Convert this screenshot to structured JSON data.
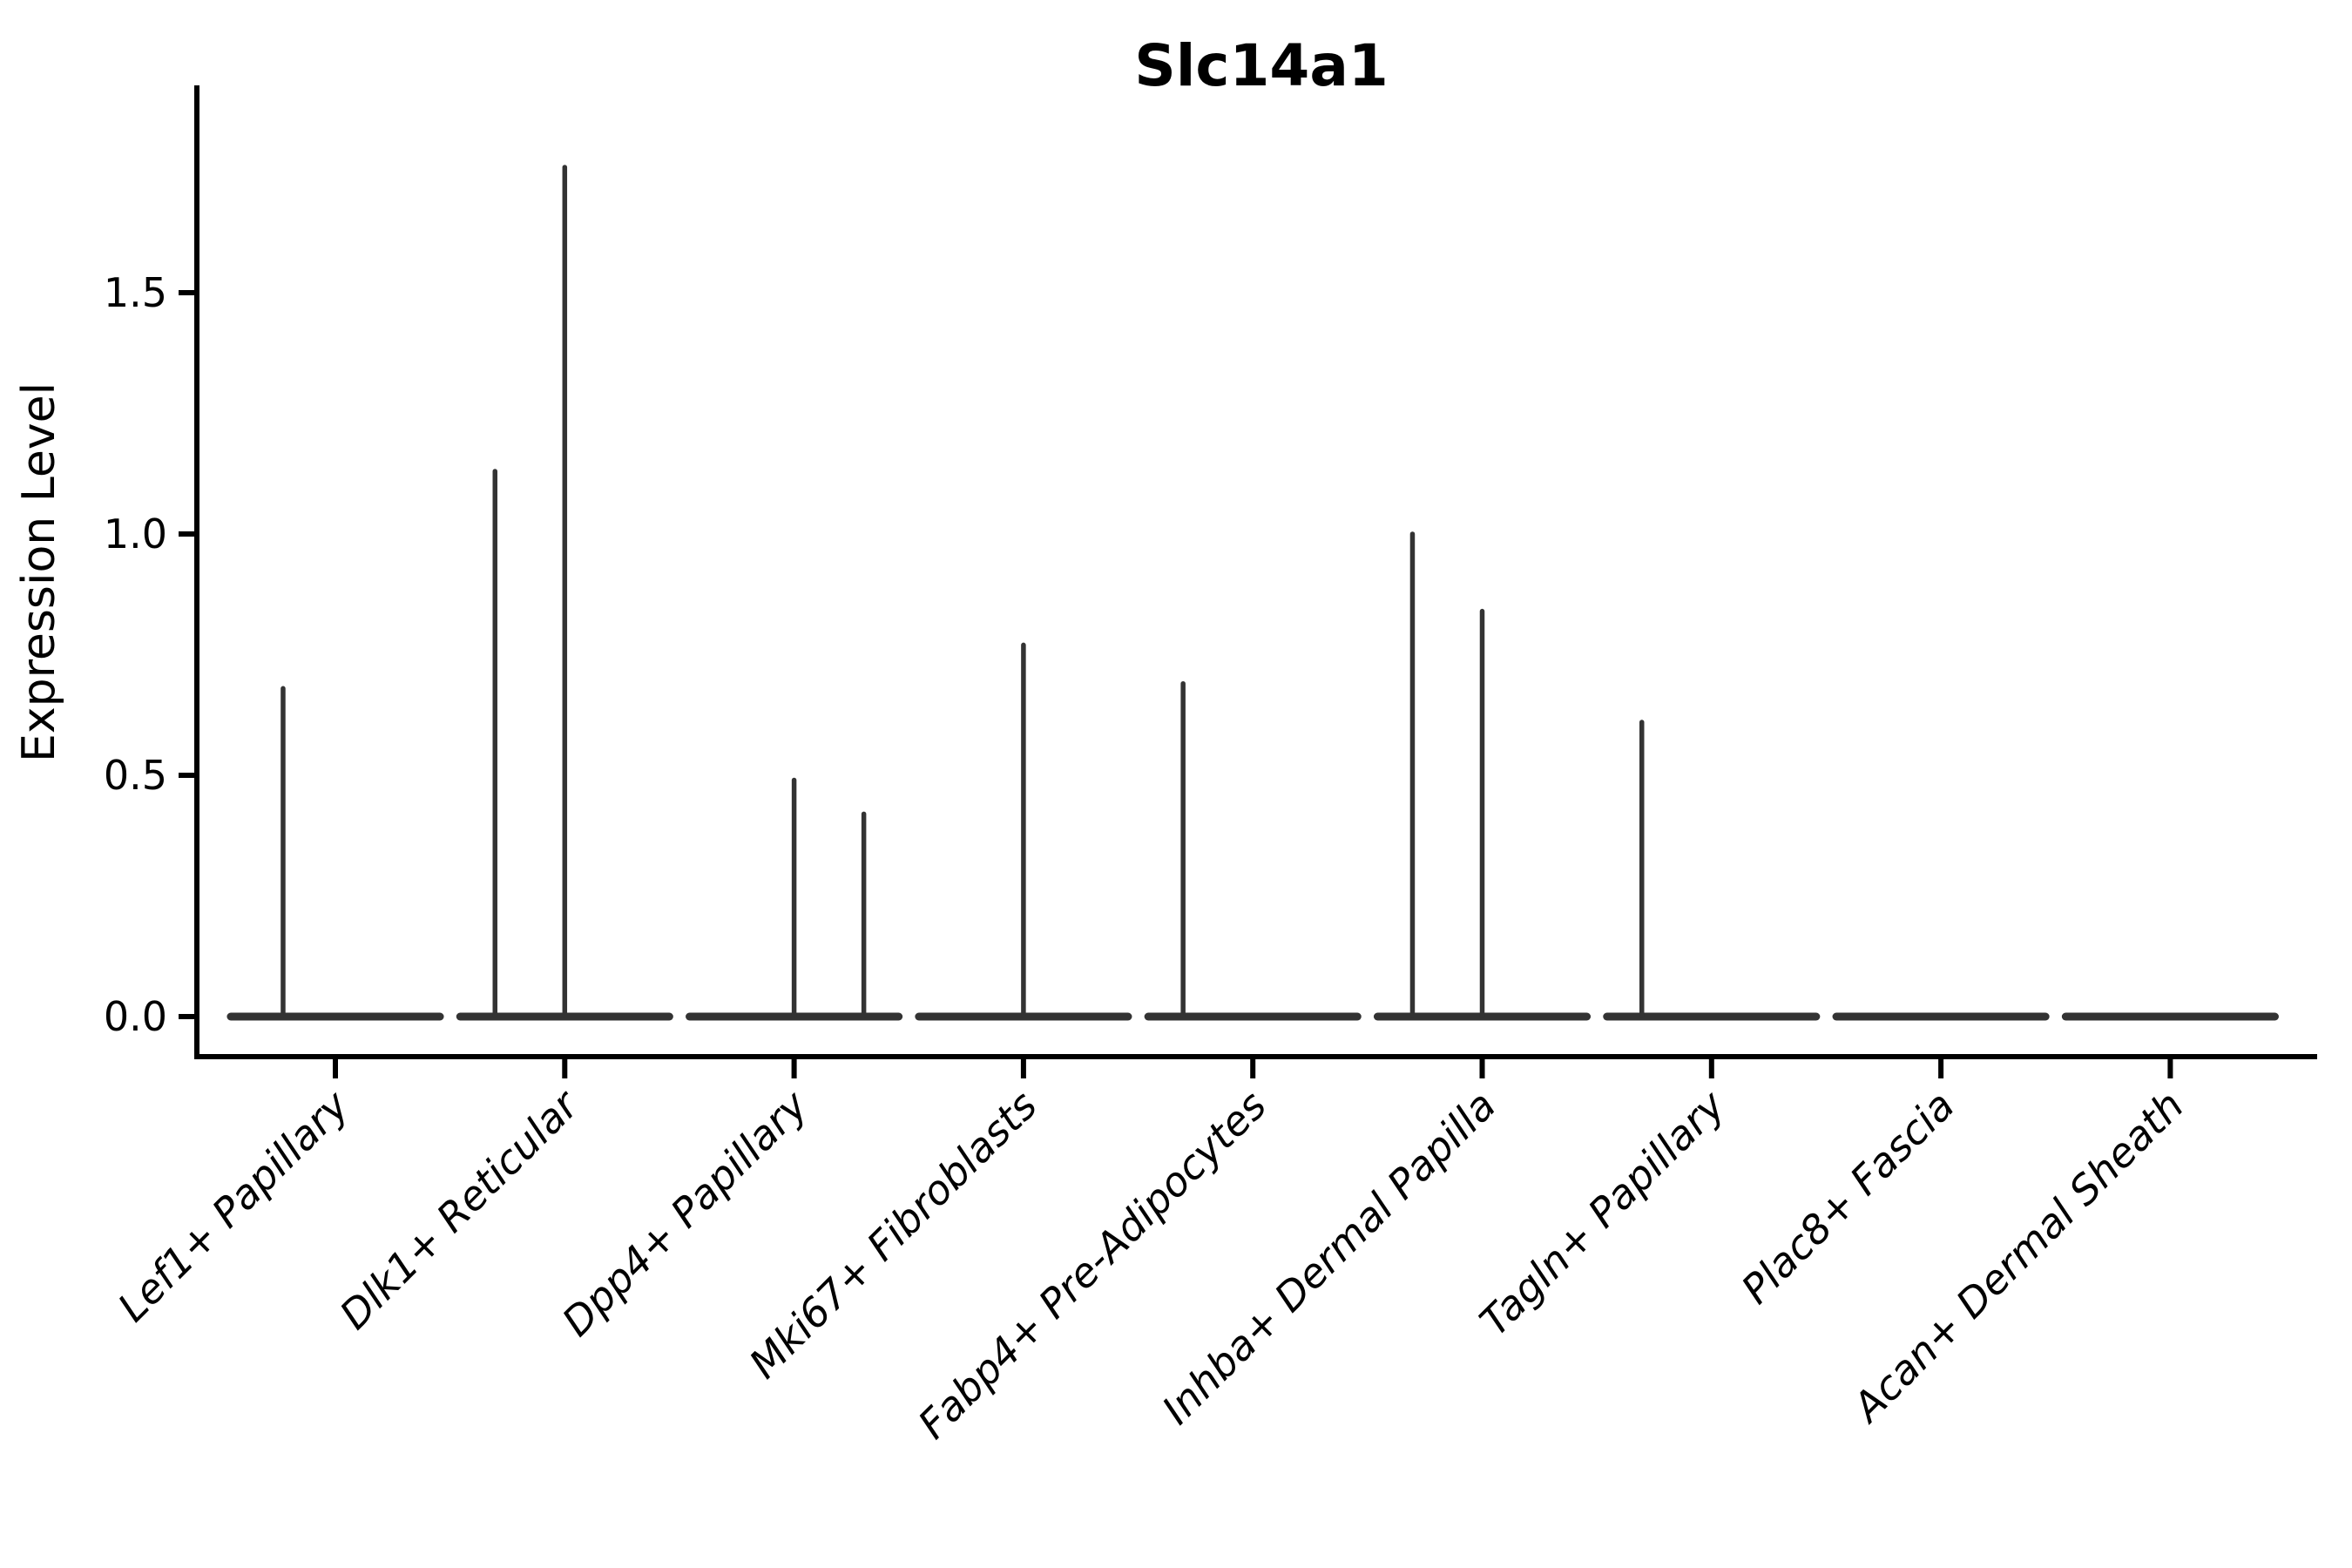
{
  "chart_data": {
    "type": "violin",
    "title": "Slc14a1",
    "ylabel": "Expression Level",
    "xlabel": "",
    "grid": false,
    "legend": false,
    "background": "#ffffff",
    "axis_color": "#000000",
    "violin_color": "#333333",
    "yticks": [
      "0.0",
      "0.5",
      "1.0",
      "1.5"
    ],
    "ytick_values": [
      0.0,
      0.5,
      1.0,
      1.5
    ],
    "ylim": [
      -0.08,
      1.93
    ],
    "xlim": [
      0.4,
      9.64
    ],
    "baseline_value": 0.0,
    "violin_body_halfwidth": 0.456,
    "categories": [
      {
        "label": "Lef1+ Papillary",
        "position": 1,
        "violins": [
          {
            "offset": -0.228,
            "max": 0.68
          }
        ]
      },
      {
        "label": "Dlk1+ Reticular",
        "position": 2,
        "violins": [
          {
            "offset": -0.304,
            "max": 1.13
          },
          {
            "offset": 0.0,
            "max": 1.76
          }
        ]
      },
      {
        "label": "Dpp4+ Papillary",
        "position": 3,
        "violins": [
          {
            "offset": 0.0,
            "max": 0.49
          },
          {
            "offset": 0.304,
            "max": 0.42
          }
        ]
      },
      {
        "label": "Mki67+ Fibroblasts",
        "position": 4,
        "violins": [
          {
            "offset": 0.0,
            "max": 0.77
          }
        ]
      },
      {
        "label": "Fabp4+ Pre-Adipocytes",
        "position": 5,
        "violins": [
          {
            "offset": -0.304,
            "max": 0.69
          }
        ]
      },
      {
        "label": "Inhba+ Dermal Papilla",
        "position": 6,
        "violins": [
          {
            "offset": -0.304,
            "max": 1.0
          },
          {
            "offset": 0.0,
            "max": 0.84
          }
        ]
      },
      {
        "label": "Tagln+ Papillary",
        "position": 7,
        "violins": [
          {
            "offset": -0.304,
            "max": 0.61
          }
        ]
      },
      {
        "label": "Plac8+ Fascia",
        "position": 8,
        "violins": []
      },
      {
        "label": "Acan+ Dermal Sheath",
        "position": 9,
        "violins": []
      }
    ]
  }
}
